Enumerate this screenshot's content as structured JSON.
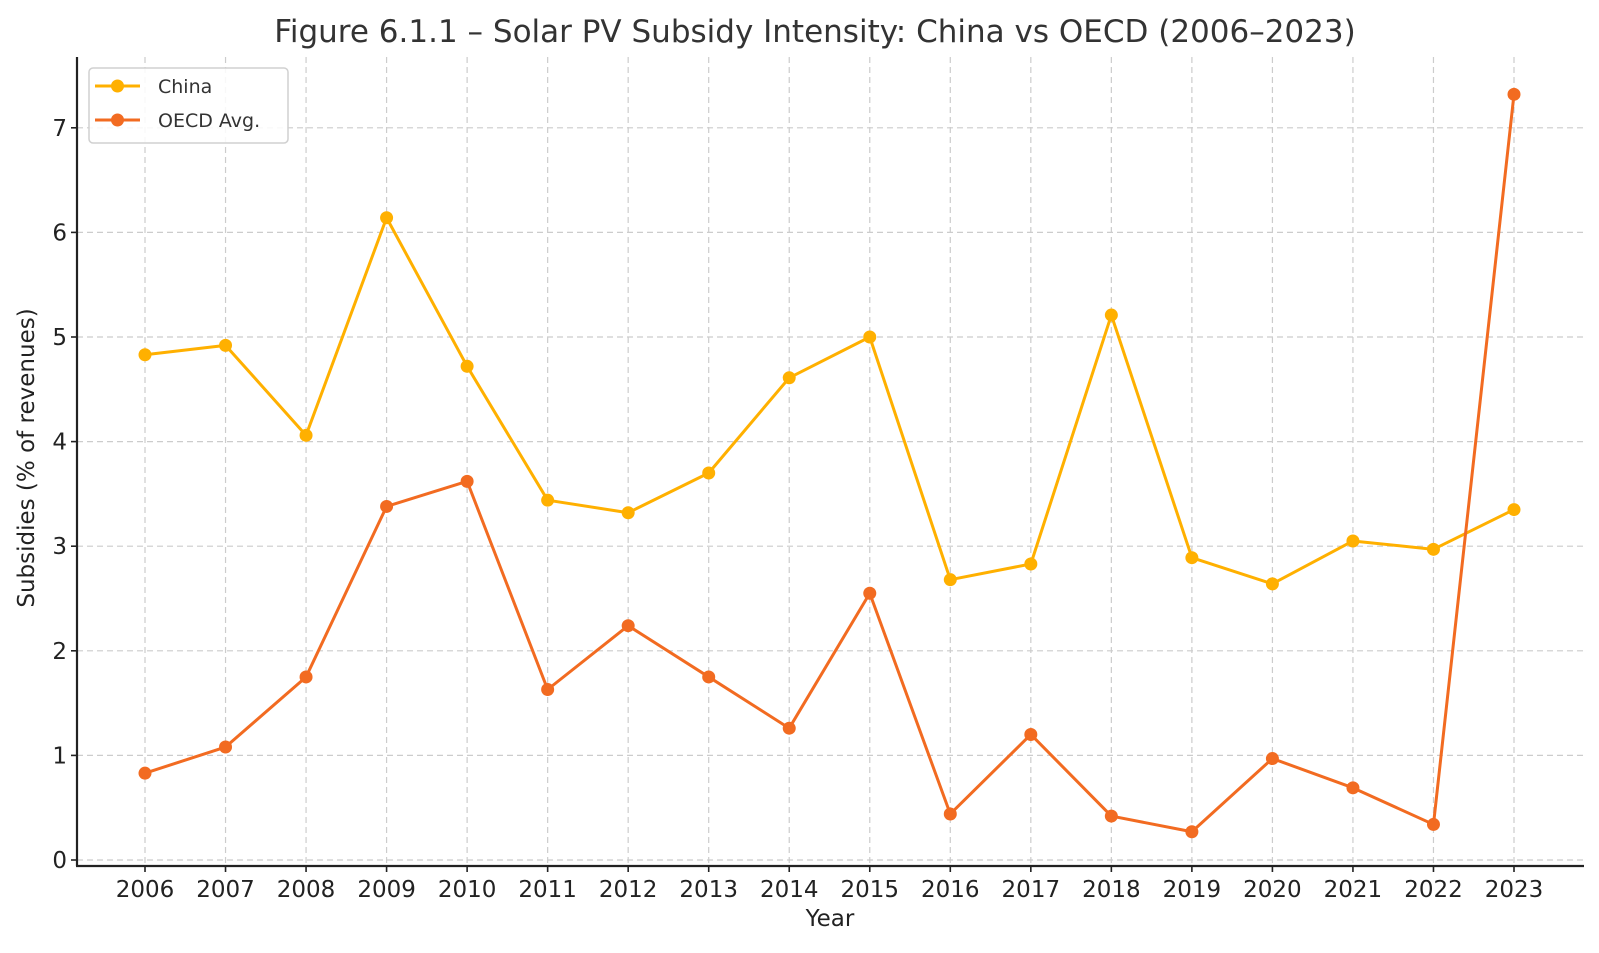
{
  "chart_data": {
    "type": "line",
    "title": "Figure 6.1.1 – Solar PV Subsidy Intensity: China vs OECD (2006–2023)",
    "xlabel": "Year",
    "ylabel": "Subsidies (% of revenues)",
    "x": [
      2006,
      2007,
      2008,
      2009,
      2010,
      2011,
      2012,
      2013,
      2014,
      2015,
      2016,
      2017,
      2018,
      2019,
      2020,
      2021,
      2022,
      2023
    ],
    "x_tick_labels": [
      "2006",
      "2007",
      "2008",
      "2009",
      "2010",
      "2011",
      "2012",
      "2013",
      "2014",
      "2015",
      "2016",
      "2017",
      "2018",
      "2019",
      "2020",
      "2021",
      "2022",
      "2023"
    ],
    "y_ticks": [
      0,
      1,
      2,
      3,
      4,
      5,
      6,
      7
    ],
    "y_tick_labels": [
      "0",
      "1",
      "2",
      "3",
      "4",
      "5",
      "6",
      "7"
    ],
    "xlim": [
      2005.15,
      2023.85
    ],
    "ylim": [
      -0.07,
      7.63
    ],
    "grid": true,
    "legend_position": "top-left",
    "series": [
      {
        "name": "China",
        "color": "#FFB000",
        "marker": "circle",
        "values": [
          4.83,
          4.92,
          4.06,
          6.14,
          4.72,
          3.44,
          3.32,
          3.7,
          4.61,
          5.0,
          2.68,
          2.83,
          5.21,
          2.89,
          2.64,
          3.05,
          2.97,
          3.35
        ]
      },
      {
        "name": "OECD Avg.",
        "color": "#F26B21",
        "marker": "circle",
        "values": [
          0.83,
          1.08,
          1.75,
          3.38,
          3.62,
          1.63,
          2.24,
          1.75,
          1.26,
          2.55,
          0.44,
          1.2,
          0.42,
          0.27,
          0.97,
          0.69,
          0.34,
          7.32
        ]
      }
    ]
  }
}
